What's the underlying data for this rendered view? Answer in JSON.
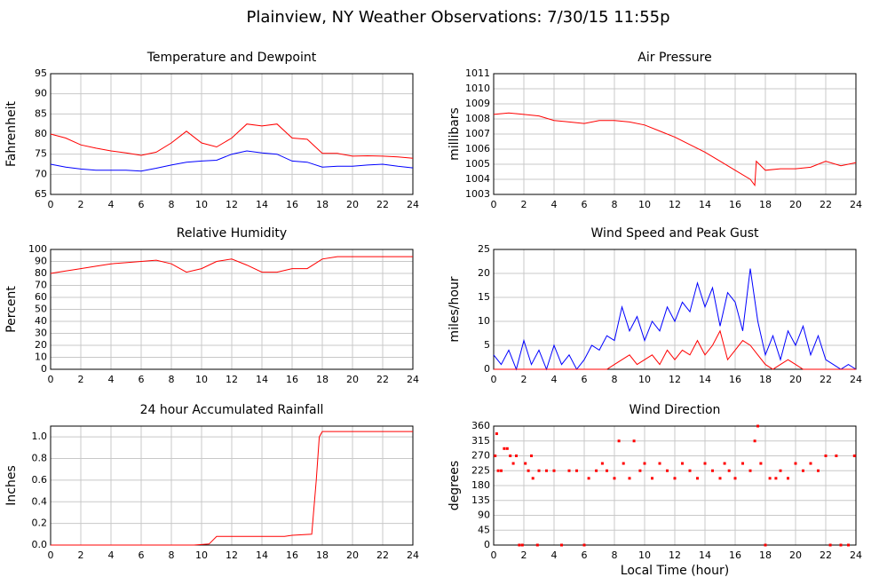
{
  "title": "Plainview, NY Weather Observations: 7/30/15 11:55p",
  "xlabel": "Local Time (hour)",
  "chart_data": [
    {
      "type": "line",
      "title": "Temperature and Dewpoint",
      "ylabel": "Fahrenheit",
      "x": [
        0,
        1,
        2,
        3,
        4,
        5,
        6,
        7,
        8,
        9,
        10,
        11,
        12,
        13,
        14,
        15,
        16,
        17,
        18,
        19,
        20,
        21,
        22,
        23,
        24
      ],
      "series": [
        {
          "color": "#ff0000",
          "values": [
            80,
            79,
            77.3,
            76.5,
            75.8,
            75.3,
            74.7,
            75.5,
            77.8,
            80.7,
            77.8,
            76.8,
            79,
            82.5,
            82,
            82.5,
            79,
            78.7,
            75.2,
            75.2,
            74.5,
            74.6,
            74.5,
            74.3,
            74
          ]
        },
        {
          "color": "#0000ff",
          "values": [
            72.5,
            71.8,
            71.3,
            71,
            71,
            71,
            70.8,
            71.5,
            72.3,
            73,
            73.3,
            73.5,
            75,
            75.8,
            75.3,
            75,
            73.3,
            73,
            71.8,
            72,
            72,
            72.3,
            72.5,
            72,
            71.6
          ]
        }
      ],
      "xlim": [
        0,
        24
      ],
      "xticks": [
        0,
        2,
        4,
        6,
        8,
        10,
        12,
        14,
        16,
        18,
        20,
        22,
        24
      ],
      "ylim": [
        65,
        95
      ],
      "yticks": [
        65,
        70,
        75,
        80,
        85,
        90,
        95
      ],
      "grid": true
    },
    {
      "type": "line",
      "title": "Air Pressure",
      "ylabel": "millibars",
      "x": [
        0,
        1,
        2,
        3,
        4,
        5,
        6,
        7,
        8,
        9,
        10,
        11,
        12,
        13,
        14,
        15,
        16,
        17,
        17.3,
        17.4,
        18,
        19,
        20,
        21,
        22,
        23,
        24
      ],
      "series": [
        {
          "color": "#ff0000",
          "values": [
            1008.3,
            1008.4,
            1008.3,
            1008.2,
            1007.9,
            1007.8,
            1007.7,
            1007.9,
            1007.9,
            1007.8,
            1007.6,
            1007.2,
            1006.8,
            1006.3,
            1005.8,
            1005.2,
            1004.6,
            1004.0,
            1003.6,
            1005.2,
            1004.6,
            1004.7,
            1004.7,
            1004.8,
            1005.2,
            1004.9,
            1005.1
          ]
        }
      ],
      "xlim": [
        0,
        24
      ],
      "xticks": [
        0,
        2,
        4,
        6,
        8,
        10,
        12,
        14,
        16,
        18,
        20,
        22,
        24
      ],
      "ylim": [
        1003,
        1011
      ],
      "yticks": [
        1003,
        1004,
        1005,
        1006,
        1007,
        1008,
        1009,
        1010,
        1011
      ],
      "grid": true
    },
    {
      "type": "line",
      "title": "Relative Humidity",
      "ylabel": "Percent",
      "x": [
        0,
        1,
        2,
        3,
        4,
        5,
        6,
        7,
        8,
        9,
        10,
        11,
        12,
        13,
        14,
        15,
        16,
        17,
        18,
        19,
        20,
        21,
        22,
        23,
        24
      ],
      "series": [
        {
          "color": "#ff0000",
          "values": [
            80,
            82,
            84,
            86,
            88,
            89,
            90,
            91,
            88,
            81,
            84,
            90,
            92,
            87,
            81,
            81,
            84,
            84,
            92,
            94,
            94,
            94,
            94,
            94,
            94
          ]
        }
      ],
      "xlim": [
        0,
        24
      ],
      "xticks": [
        0,
        2,
        4,
        6,
        8,
        10,
        12,
        14,
        16,
        18,
        20,
        22,
        24
      ],
      "ylim": [
        0,
        100
      ],
      "yticks": [
        0,
        10,
        20,
        30,
        40,
        50,
        60,
        70,
        80,
        90,
        100
      ],
      "grid": true
    },
    {
      "type": "line",
      "title": "Wind Speed and Peak Gust",
      "ylabel": "miles/hour",
      "x": [
        0,
        0.5,
        1,
        1.5,
        2,
        2.5,
        3,
        3.5,
        4,
        4.5,
        5,
        5.5,
        6,
        6.5,
        7,
        7.5,
        8,
        8.5,
        9,
        9.5,
        10,
        10.5,
        11,
        11.5,
        12,
        12.5,
        13,
        13.5,
        14,
        14.5,
        15,
        15.5,
        16,
        16.5,
        17,
        17.5,
        18,
        18.5,
        19,
        19.5,
        20,
        20.5,
        21,
        21.5,
        22,
        22.5,
        23,
        23.5,
        24
      ],
      "series": [
        {
          "color": "#0000ff",
          "values": [
            3,
            1,
            4,
            0,
            6,
            1,
            4,
            0,
            5,
            1,
            3,
            0,
            2,
            5,
            4,
            7,
            6,
            13,
            8,
            11,
            6,
            10,
            8,
            13,
            10,
            14,
            12,
            18,
            13,
            17,
            9,
            16,
            14,
            8,
            21,
            10,
            3,
            7,
            2,
            8,
            5,
            9,
            3,
            7,
            2,
            1,
            0,
            1,
            0
          ]
        },
        {
          "color": "#ff0000",
          "values": [
            0,
            0,
            0,
            0,
            0,
            0,
            0,
            0,
            0,
            0,
            0,
            0,
            0,
            0,
            0,
            0,
            1,
            2,
            3,
            1,
            2,
            3,
            1,
            4,
            2,
            4,
            3,
            6,
            3,
            5,
            8,
            2,
            4,
            6,
            5,
            3,
            1,
            0,
            1,
            2,
            1,
            0,
            0,
            0,
            0,
            0,
            0,
            0,
            0
          ]
        }
      ],
      "xlim": [
        0,
        24
      ],
      "xticks": [
        0,
        2,
        4,
        6,
        8,
        10,
        12,
        14,
        16,
        18,
        20,
        22,
        24
      ],
      "ylim": [
        0,
        25
      ],
      "yticks": [
        0,
        5,
        10,
        15,
        20,
        25
      ],
      "grid": true
    },
    {
      "type": "line",
      "title": "24 hour Accumulated Rainfall",
      "ylabel": "Inches",
      "x": [
        0,
        9.5,
        10.5,
        11,
        15.5,
        16,
        17.3,
        17.6,
        17.8,
        18,
        24
      ],
      "series": [
        {
          "color": "#ff0000",
          "values": [
            0,
            0,
            0.01,
            0.08,
            0.08,
            0.09,
            0.1,
            0.6,
            1.0,
            1.05,
            1.05
          ]
        }
      ],
      "xlim": [
        0,
        24
      ],
      "xticks": [
        0,
        2,
        4,
        6,
        8,
        10,
        12,
        14,
        16,
        18,
        20,
        22,
        24
      ],
      "ylim": [
        0,
        1.1
      ],
      "yticks": [
        {
          "value": 0,
          "label": "0.0"
        },
        {
          "value": 0.2,
          "label": "0.2"
        },
        {
          "value": 0.4,
          "label": "0.4"
        },
        {
          "value": 0.6,
          "label": "0.6"
        },
        {
          "value": 0.8,
          "label": "0.8"
        },
        {
          "value": 1,
          "label": "1.0"
        }
      ],
      "grid": true
    },
    {
      "type": "scatter",
      "title": "Wind Direction",
      "ylabel": "degrees",
      "x": [
        0.1,
        0.2,
        0.3,
        0.5,
        0.7,
        0.9,
        1.1,
        1.3,
        1.5,
        1.7,
        1.9,
        2.1,
        2.3,
        2.5,
        2.6,
        2.9,
        3,
        3.5,
        4,
        4.5,
        5,
        5.5,
        6,
        6.3,
        6.8,
        7.2,
        7.5,
        8,
        8.3,
        8.6,
        9,
        9.3,
        9.7,
        10,
        10.5,
        11,
        11.5,
        12,
        12.5,
        13,
        13.5,
        14,
        14.5,
        15,
        15.3,
        15.6,
        16,
        16.5,
        17,
        17.3,
        17.5,
        17.7,
        18,
        18.3,
        18.7,
        19,
        19.5,
        20,
        20.5,
        21,
        21.5,
        22,
        22.3,
        22.7,
        23,
        23.5,
        23.9
      ],
      "series": [
        {
          "color": "#ff0000",
          "values": [
            270,
            337,
            225,
            225,
            292,
            292,
            270,
            247,
            270,
            0,
            0,
            247,
            225,
            270,
            202,
            0,
            225,
            225,
            225,
            0,
            225,
            225,
            0,
            202,
            225,
            247,
            225,
            202,
            315,
            247,
            202,
            315,
            225,
            247,
            202,
            247,
            225,
            202,
            247,
            225,
            202,
            247,
            225,
            202,
            247,
            225,
            202,
            247,
            225,
            315,
            360,
            247,
            0,
            202,
            202,
            225,
            202,
            247,
            225,
            247,
            225,
            270,
            0,
            270,
            0,
            0,
            270
          ]
        }
      ],
      "xlim": [
        0,
        24
      ],
      "xticks": [
        0,
        2,
        4,
        6,
        8,
        10,
        12,
        14,
        16,
        18,
        20,
        22,
        24
      ],
      "ylim": [
        0,
        360
      ],
      "yticks": [
        0,
        45,
        90,
        135,
        180,
        225,
        270,
        315,
        360
      ],
      "grid": true
    }
  ]
}
